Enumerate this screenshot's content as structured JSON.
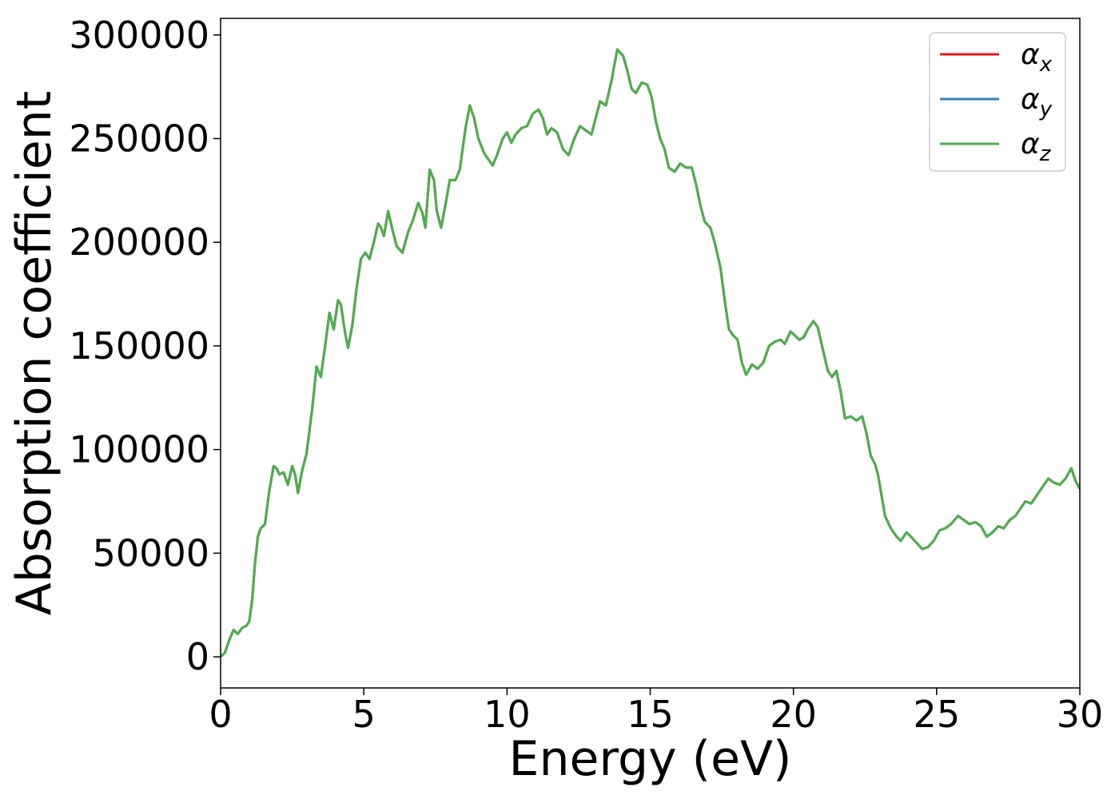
{
  "chart_data": {
    "type": "line",
    "title": "",
    "xlabel": "Energy (eV)",
    "ylabel": "Absorption coefficient",
    "xlim": [
      0,
      30
    ],
    "ylim": [
      -15000,
      308000
    ],
    "xticks": [
      0,
      5,
      10,
      15,
      20,
      25,
      30
    ],
    "yticks": [
      0,
      50000,
      100000,
      150000,
      200000,
      250000,
      300000
    ],
    "grid": false,
    "legend_position": "top-right",
    "series": [
      {
        "name": "αx",
        "legend_symbol": "α",
        "legend_subscript": "x",
        "color": "#e41a1c",
        "points": [
          [
            0,
            0
          ],
          [
            0.15,
            2000
          ],
          [
            0.3,
            8000
          ],
          [
            0.45,
            13000
          ],
          [
            0.6,
            11000
          ],
          [
            0.75,
            14000
          ],
          [
            0.9,
            15000
          ],
          [
            1.0,
            17000
          ],
          [
            1.1,
            27000
          ],
          [
            1.2,
            45000
          ],
          [
            1.3,
            58000
          ],
          [
            1.4,
            62000
          ],
          [
            1.55,
            64000
          ],
          [
            1.7,
            80000
          ],
          [
            1.85,
            92000
          ],
          [
            1.95,
            91000
          ],
          [
            2.05,
            88000
          ],
          [
            2.2,
            89000
          ],
          [
            2.35,
            83000
          ],
          [
            2.5,
            92000
          ],
          [
            2.6,
            88000
          ],
          [
            2.7,
            79000
          ],
          [
            2.85,
            90000
          ],
          [
            3.0,
            98000
          ],
          [
            3.2,
            120000
          ],
          [
            3.35,
            140000
          ],
          [
            3.5,
            135000
          ],
          [
            3.65,
            150000
          ],
          [
            3.8,
            166000
          ],
          [
            3.95,
            158000
          ],
          [
            4.1,
            172000
          ],
          [
            4.2,
            170000
          ],
          [
            4.35,
            156000
          ],
          [
            4.45,
            149000
          ],
          [
            4.6,
            160000
          ],
          [
            4.75,
            178000
          ],
          [
            4.9,
            192000
          ],
          [
            5.05,
            195000
          ],
          [
            5.2,
            192000
          ],
          [
            5.35,
            200000
          ],
          [
            5.5,
            209000
          ],
          [
            5.6,
            207000
          ],
          [
            5.7,
            203000
          ],
          [
            5.85,
            215000
          ],
          [
            6.0,
            206000
          ],
          [
            6.15,
            198000
          ],
          [
            6.35,
            195000
          ],
          [
            6.55,
            205000
          ],
          [
            6.7,
            210000
          ],
          [
            6.9,
            219000
          ],
          [
            7.05,
            214000
          ],
          [
            7.15,
            207000
          ],
          [
            7.3,
            235000
          ],
          [
            7.45,
            230000
          ],
          [
            7.55,
            215000
          ],
          [
            7.7,
            207000
          ],
          [
            7.85,
            218000
          ],
          [
            8.0,
            230000
          ],
          [
            8.2,
            230000
          ],
          [
            8.35,
            235000
          ],
          [
            8.55,
            255000
          ],
          [
            8.7,
            266000
          ],
          [
            8.85,
            260000
          ],
          [
            9.0,
            250000
          ],
          [
            9.2,
            243000
          ],
          [
            9.35,
            240000
          ],
          [
            9.5,
            237000
          ],
          [
            9.65,
            242000
          ],
          [
            9.85,
            250000
          ],
          [
            10.0,
            253000
          ],
          [
            10.15,
            248000
          ],
          [
            10.3,
            252000
          ],
          [
            10.5,
            255000
          ],
          [
            10.7,
            256000
          ],
          [
            10.9,
            262000
          ],
          [
            11.1,
            264000
          ],
          [
            11.25,
            260000
          ],
          [
            11.4,
            252000
          ],
          [
            11.55,
            255000
          ],
          [
            11.75,
            253000
          ],
          [
            11.95,
            245000
          ],
          [
            12.15,
            242000
          ],
          [
            12.35,
            250000
          ],
          [
            12.55,
            256000
          ],
          [
            12.75,
            254000
          ],
          [
            12.95,
            252000
          ],
          [
            13.1,
            260000
          ],
          [
            13.25,
            268000
          ],
          [
            13.45,
            266000
          ],
          [
            13.65,
            278000
          ],
          [
            13.85,
            293000
          ],
          [
            14.05,
            290000
          ],
          [
            14.2,
            283000
          ],
          [
            14.35,
            274000
          ],
          [
            14.5,
            272000
          ],
          [
            14.7,
            277000
          ],
          [
            14.9,
            276000
          ],
          [
            15.05,
            270000
          ],
          [
            15.2,
            258000
          ],
          [
            15.35,
            250000
          ],
          [
            15.5,
            245000
          ],
          [
            15.65,
            236000
          ],
          [
            15.85,
            234000
          ],
          [
            16.05,
            238000
          ],
          [
            16.25,
            236000
          ],
          [
            16.45,
            236000
          ],
          [
            16.6,
            228000
          ],
          [
            16.75,
            218000
          ],
          [
            16.9,
            210000
          ],
          [
            17.1,
            207000
          ],
          [
            17.25,
            200000
          ],
          [
            17.45,
            188000
          ],
          [
            17.6,
            172000
          ],
          [
            17.75,
            158000
          ],
          [
            17.9,
            155000
          ],
          [
            18.05,
            153000
          ],
          [
            18.2,
            142000
          ],
          [
            18.35,
            136000
          ],
          [
            18.55,
            141000
          ],
          [
            18.75,
            139000
          ],
          [
            18.95,
            142000
          ],
          [
            19.15,
            150000
          ],
          [
            19.35,
            152000
          ],
          [
            19.55,
            153000
          ],
          [
            19.7,
            151000
          ],
          [
            19.9,
            157000
          ],
          [
            20.05,
            155000
          ],
          [
            20.2,
            153000
          ],
          [
            20.35,
            154000
          ],
          [
            20.5,
            158000
          ],
          [
            20.7,
            162000
          ],
          [
            20.85,
            159000
          ],
          [
            21.0,
            150000
          ],
          [
            21.2,
            138000
          ],
          [
            21.35,
            135000
          ],
          [
            21.5,
            138000
          ],
          [
            21.65,
            128000
          ],
          [
            21.8,
            115000
          ],
          [
            22.0,
            116000
          ],
          [
            22.2,
            114000
          ],
          [
            22.4,
            116000
          ],
          [
            22.55,
            108000
          ],
          [
            22.7,
            97000
          ],
          [
            22.85,
            93000
          ],
          [
            22.95,
            88000
          ],
          [
            23.05,
            80000
          ],
          [
            23.2,
            68000
          ],
          [
            23.4,
            62000
          ],
          [
            23.6,
            58000
          ],
          [
            23.75,
            56000
          ],
          [
            23.95,
            60000
          ],
          [
            24.1,
            58000
          ],
          [
            24.3,
            55000
          ],
          [
            24.5,
            52000
          ],
          [
            24.7,
            53000
          ],
          [
            24.9,
            56000
          ],
          [
            25.1,
            61000
          ],
          [
            25.3,
            62000
          ],
          [
            25.5,
            64000
          ],
          [
            25.75,
            68000
          ],
          [
            25.95,
            66000
          ],
          [
            26.15,
            64000
          ],
          [
            26.35,
            65000
          ],
          [
            26.55,
            63000
          ],
          [
            26.75,
            58000
          ],
          [
            26.95,
            60000
          ],
          [
            27.15,
            63000
          ],
          [
            27.35,
            62000
          ],
          [
            27.55,
            66000
          ],
          [
            27.75,
            68000
          ],
          [
            27.95,
            72000
          ],
          [
            28.1,
            75000
          ],
          [
            28.3,
            74000
          ],
          [
            28.5,
            78000
          ],
          [
            28.7,
            82000
          ],
          [
            28.9,
            86000
          ],
          [
            29.1,
            84000
          ],
          [
            29.3,
            83000
          ],
          [
            29.5,
            86000
          ],
          [
            29.7,
            91000
          ],
          [
            29.85,
            85000
          ],
          [
            30.0,
            81000
          ]
        ]
      },
      {
        "name": "αy",
        "legend_symbol": "α",
        "legend_subscript": "y",
        "color": "#377eb8",
        "same_as_series": 0
      },
      {
        "name": "αz",
        "legend_symbol": "α",
        "legend_subscript": "z",
        "color": "#4daf4a",
        "same_as_series": 0
      }
    ]
  }
}
